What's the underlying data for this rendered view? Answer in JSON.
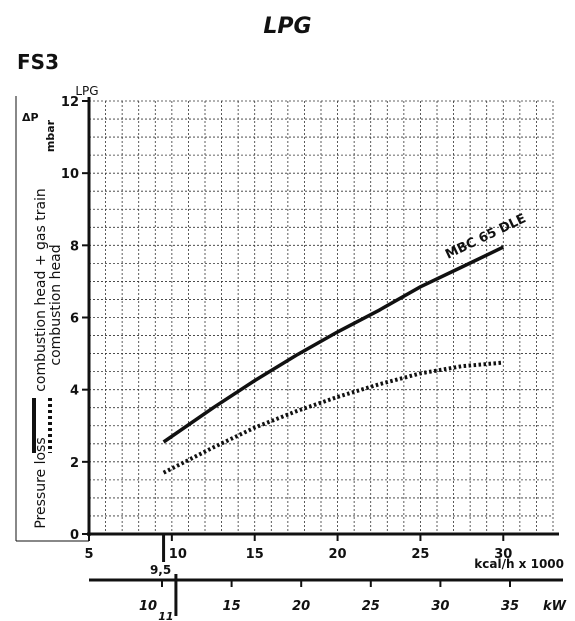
{
  "page_title": "LPG",
  "model_code": "FS3",
  "chart_data": {
    "type": "line",
    "fuel_label": "LPG",
    "delta_p_label": "ΔP",
    "unit_label": "mbar",
    "ylim": [
      0,
      12
    ],
    "xlim": [
      5,
      33
    ],
    "y_ticks": [
      0,
      2,
      4,
      6,
      8,
      10,
      12
    ],
    "x_ticks": [
      5,
      10,
      15,
      20,
      25,
      30
    ],
    "x_tick_labels": [
      "5",
      "10",
      "15",
      "20",
      "25",
      "30"
    ],
    "x_min_marker": 9.5,
    "x_min_marker_label": "9,5",
    "xlabel": "kcal/h x 1000",
    "secondary_axis": {
      "label": "kW",
      "ticks": [
        10,
        15,
        20,
        25,
        30,
        35
      ],
      "tick_labels": [
        "10",
        "15",
        "20",
        "25",
        "30",
        "35"
      ],
      "min_marker": 11,
      "min_marker_label": "11"
    },
    "ylabel": "Pressure loss",
    "legend": [
      {
        "label": "combustion head + gas train",
        "style": "solid"
      },
      {
        "label": "combustion head",
        "style": "dotted"
      }
    ],
    "series": [
      {
        "name": "MBC 65 DLE",
        "style": "solid",
        "color": "#111111",
        "x": [
          9.5,
          12.5,
          15,
          17.5,
          20,
          22.5,
          25,
          27.5,
          30
        ],
        "y": [
          2.55,
          3.5,
          4.25,
          4.95,
          5.6,
          6.2,
          6.85,
          7.4,
          7.95
        ]
      },
      {
        "style": "dotted",
        "color": "#111111",
        "x": [
          9.5,
          12.5,
          15,
          17.5,
          20,
          22.5,
          25,
          27.5,
          30
        ],
        "y": [
          1.7,
          2.4,
          2.95,
          3.4,
          3.8,
          4.15,
          4.45,
          4.65,
          4.75
        ]
      }
    ]
  }
}
